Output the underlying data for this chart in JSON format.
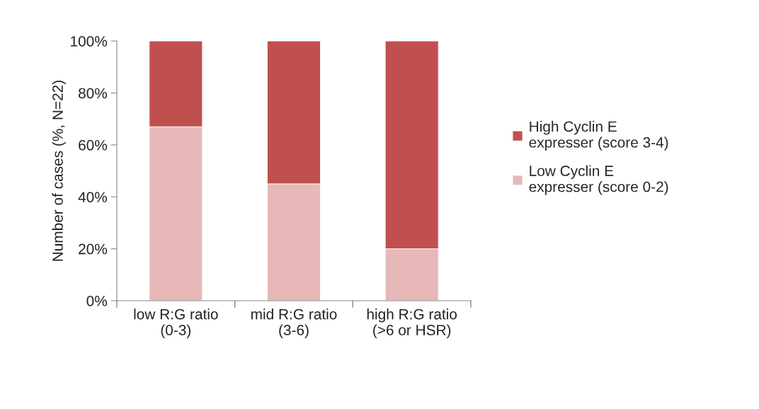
{
  "chart_data": {
    "type": "bar",
    "stacked": true,
    "ylabel": "Number of cases (%, N=22)",
    "categories": [
      "low R:G ratio\n(0-3)",
      "mid R:G ratio\n(3-6)",
      "high R:G ratio\n(>6 or HSR)"
    ],
    "series": [
      {
        "name": "Low Cyclin E\nexpresser (score 0-2)",
        "color": "#e6b9b8",
        "values": [
          67,
          45,
          20
        ]
      },
      {
        "name": "High Cyclin E\nexpresser (score 3-4)",
        "color": "#c0504d",
        "values": [
          33,
          55,
          80
        ]
      }
    ],
    "ylim": [
      0,
      100
    ],
    "yticks": [
      {
        "value": 0,
        "label": "0%"
      },
      {
        "value": 20,
        "label": "20%"
      },
      {
        "value": 40,
        "label": "40%"
      },
      {
        "value": 60,
        "label": "60%"
      },
      {
        "value": 80,
        "label": "80%"
      },
      {
        "value": 100,
        "label": "100%"
      }
    ],
    "grid": false,
    "legend": "right"
  }
}
